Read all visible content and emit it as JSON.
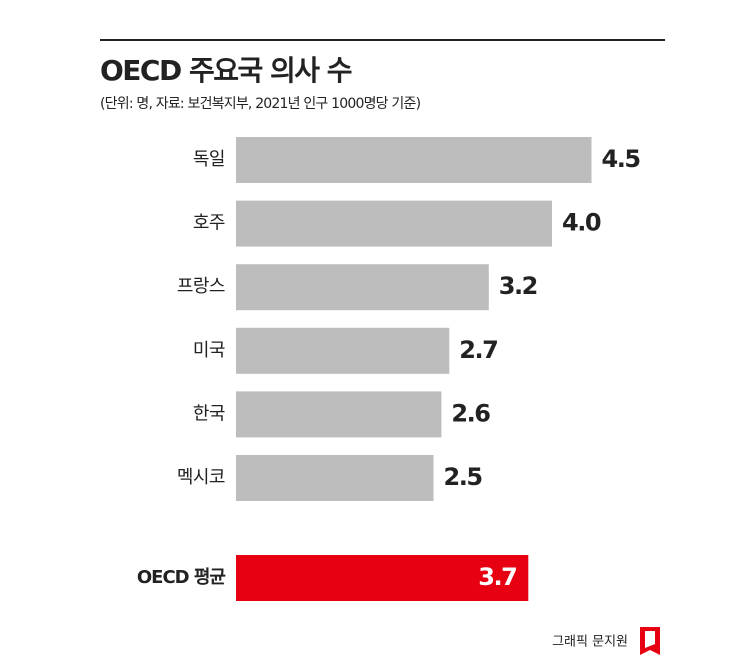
{
  "chart_data": {
    "type": "bar",
    "title": "OECD 주요국 의사 수",
    "subtitle": "(단위: 명, 자료: 보건복지부, 2021년 인구 1000명당 기준)",
    "categories": [
      "독일",
      "호주",
      "프랑스",
      "미국",
      "한국",
      "멕시코"
    ],
    "values": [
      4.5,
      4.0,
      3.2,
      2.7,
      2.6,
      2.5
    ],
    "value_labels": [
      "4.5",
      "4.0",
      "3.2",
      "2.7",
      "2.6",
      "2.5"
    ],
    "color": "#bdbdbd",
    "average": {
      "category": "OECD 평균",
      "value": 3.7,
      "value_label": "3.7",
      "color": "#e60012"
    },
    "credit": "그래픽 문지원"
  }
}
